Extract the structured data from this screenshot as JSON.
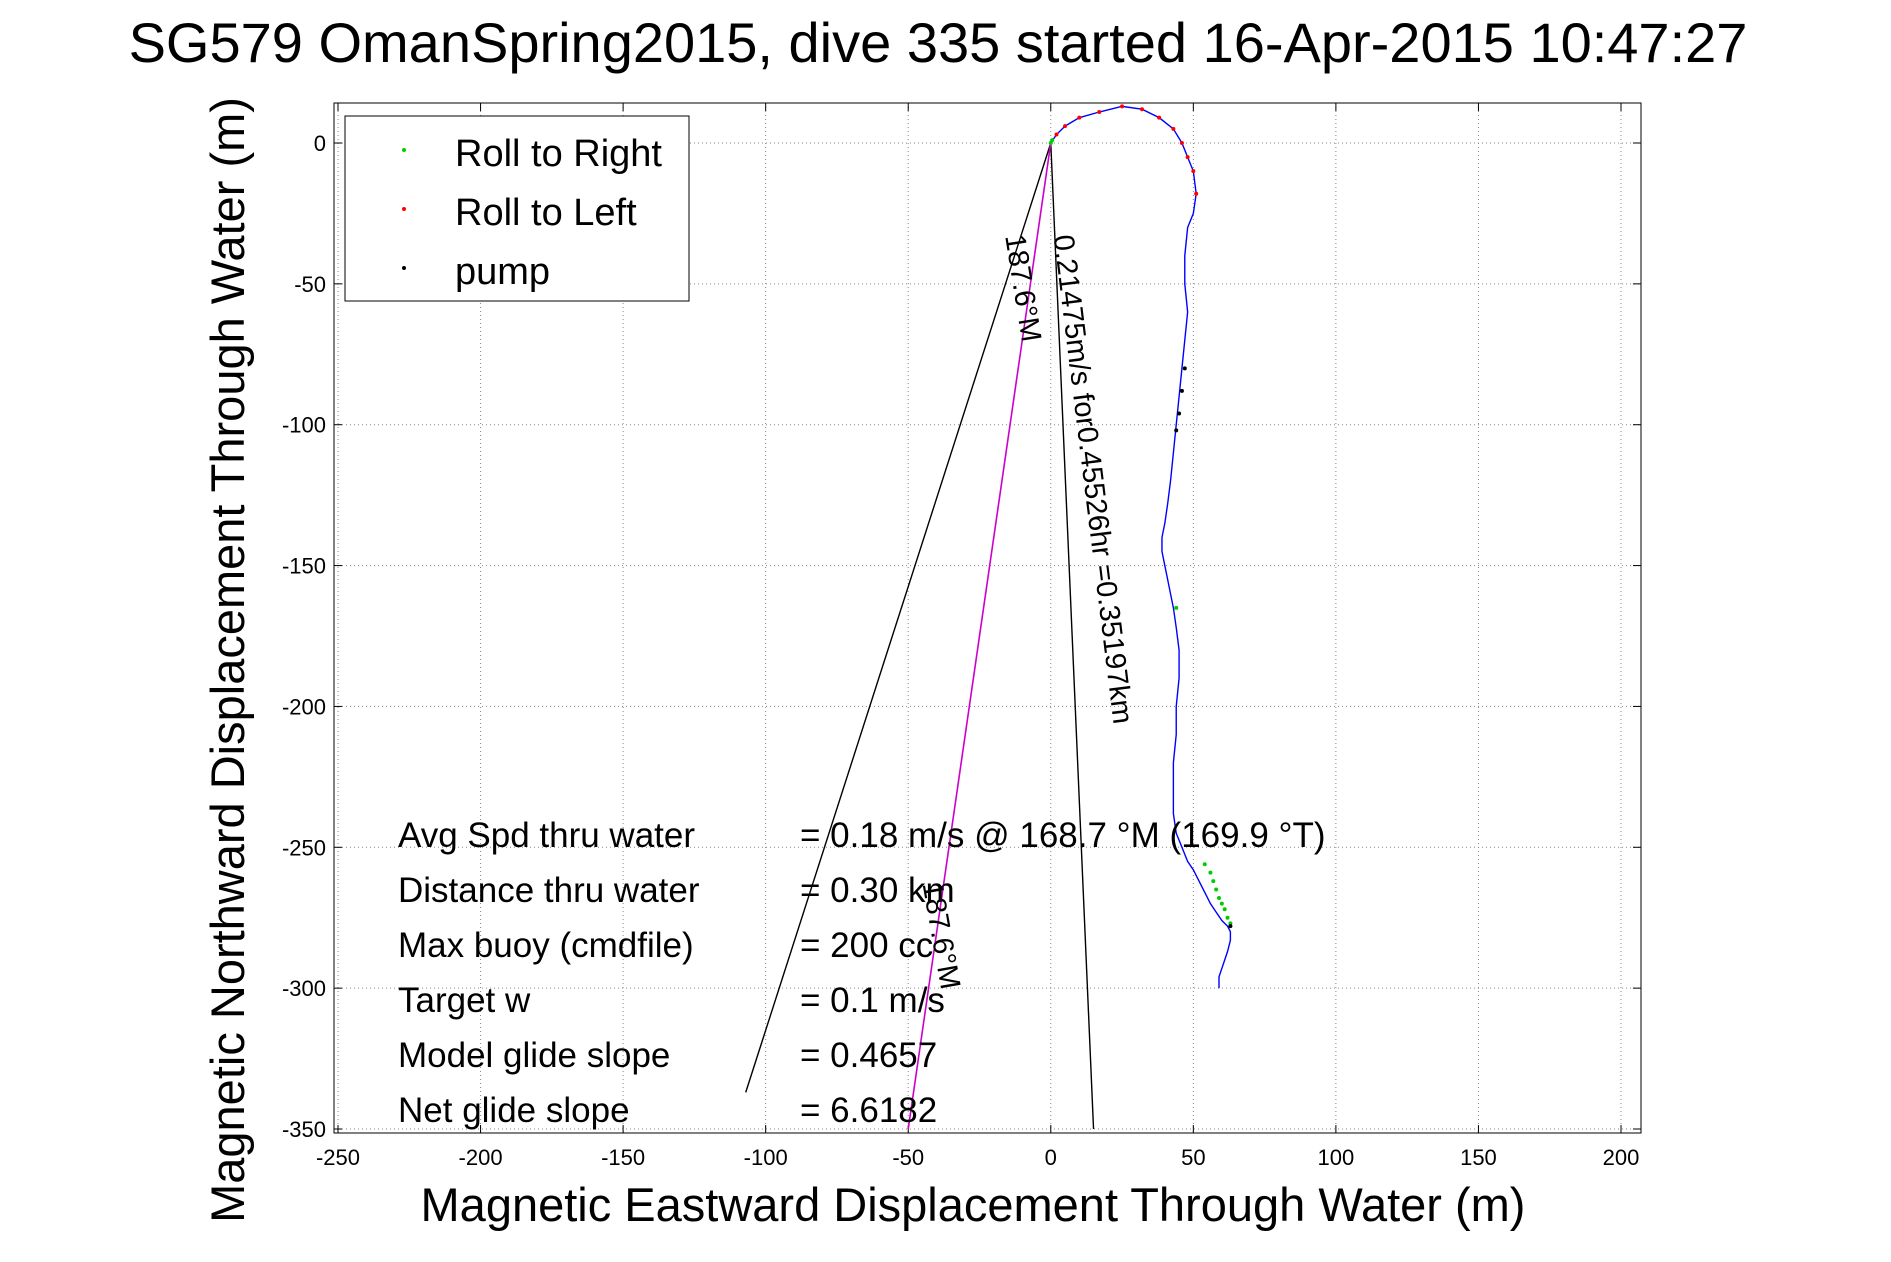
{
  "chart_data": {
    "type": "line",
    "title": "SG579 OmanSpring2015, dive 335 started 16-Apr-2015 10:47:27",
    "xlabel": "Magnetic Eastward Displacement Through Water (m)",
    "ylabel": "Magnetic Northward Displacement Through Water (m)",
    "xlim": [
      -250,
      200
    ],
    "ylim": [
      -350,
      10
    ],
    "xticks": [
      -250,
      -200,
      -150,
      -100,
      -50,
      0,
      50,
      100,
      150,
      200
    ],
    "yticks": [
      0,
      -50,
      -100,
      -150,
      -200,
      -250,
      -300,
      -350
    ],
    "grid": true,
    "legend_position": "top-left",
    "legend": [
      {
        "label": "Roll to Right",
        "color": "#00cc00"
      },
      {
        "label": "Roll to Left",
        "color": "#ff0000"
      },
      {
        "label": "pump",
        "color": "#000000"
      }
    ],
    "series": [
      {
        "color": "#0000ff",
        "x": [
          0,
          2,
          5,
          10,
          17,
          25,
          32,
          38,
          43,
          46,
          48,
          50,
          51,
          50,
          48,
          47,
          47,
          48,
          47,
          46,
          45,
          44,
          43,
          42,
          41,
          40,
          39,
          39,
          40,
          41,
          42,
          43,
          44,
          45,
          45,
          44,
          44,
          43,
          43,
          43,
          44,
          46,
          48,
          50,
          52,
          54,
          56,
          58,
          60,
          62,
          63,
          63,
          62,
          61,
          60,
          59,
          59
        ],
        "y": [
          0,
          3,
          6,
          9,
          11,
          13,
          12,
          9,
          5,
          0,
          -5,
          -10,
          -18,
          -25,
          -30,
          -40,
          -50,
          -60,
          -70,
          -80,
          -90,
          -100,
          -110,
          -120,
          -128,
          -135,
          -140,
          -145,
          -150,
          -155,
          -160,
          -165,
          -172,
          -180,
          -190,
          -200,
          -210,
          -220,
          -230,
          -238,
          -245,
          -250,
          -255,
          -258,
          -262,
          -266,
          -270,
          -273,
          -276,
          -278,
          -280,
          -283,
          -287,
          -290,
          -293,
          -296,
          -300
        ]
      }
    ],
    "markers": {
      "roll_right": {
        "x": [
          0,
          0.5,
          44,
          54,
          56,
          57,
          58,
          59,
          60,
          61,
          62,
          63
        ],
        "y": [
          0,
          1,
          -165,
          -256,
          -259,
          -262,
          -265,
          -268,
          -270,
          -272,
          -275,
          -277
        ]
      },
      "roll_left": {
        "x": [
          2,
          5,
          10,
          17,
          25,
          32,
          38,
          43,
          46,
          48,
          50,
          51
        ],
        "y": [
          3,
          6,
          9,
          11,
          13,
          12,
          9,
          5,
          0,
          -5,
          -10,
          -18
        ]
      },
      "pump": {
        "x": [
          47,
          46,
          45,
          44,
          63
        ],
        "y": [
          -80,
          -88,
          -96,
          -102,
          -278
        ]
      }
    },
    "heading_line": {
      "color": "#cc00cc",
      "x": [
        0,
        -50
      ],
      "y": [
        0,
        -350
      ]
    },
    "current_wedge": {
      "color": "#000000",
      "apex": [
        0,
        0
      ],
      "left_end": [
        -107,
        -337
      ],
      "right_end": [
        15,
        -350
      ]
    },
    "annotations": [
      {
        "text": "0.21475m/s for0.45526hr =0.35197km",
        "x": 1,
        "y": -33,
        "angle": 83
      },
      {
        "text": "187.6°M",
        "x": -16,
        "y": -33,
        "angle": 81
      },
      {
        "text": "187.6°M",
        "x": -45,
        "y": -263,
        "angle": 80
      }
    ]
  },
  "stats": [
    {
      "label": "Avg Spd thru water",
      "value": "=  0.18 m/s @ 168.7 °M (169.9 °T)"
    },
    {
      "label": "Distance thru water",
      "value": "=  0.30 km"
    },
    {
      "label": "Max buoy (cmdfile)",
      "value": "= 200 cc"
    },
    {
      "label": "Target w",
      "value": "= 0.1 m/s"
    },
    {
      "label": "Model glide slope",
      "value": "= 0.4657"
    },
    {
      "label": "Net glide slope",
      "value": "= 6.6182"
    }
  ]
}
